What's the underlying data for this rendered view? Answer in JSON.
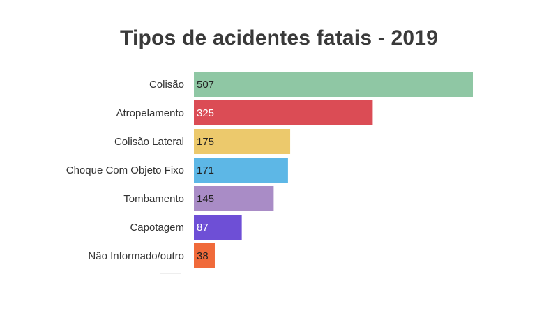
{
  "chart_data": {
    "type": "bar",
    "orientation": "horizontal",
    "title": "Tipos de acidentes fatais  - 2019",
    "xlabel": "",
    "ylabel": "",
    "categories": [
      "Colisão",
      "Atropelamento",
      "Colisão Lateral",
      "Choque Com Objeto Fixo",
      "Tombamento",
      "Capotagem",
      "Não Informado/outro"
    ],
    "values": [
      507,
      325,
      175,
      171,
      145,
      87,
      38
    ],
    "value_labels": [
      "507",
      "325",
      "175",
      "171",
      "145",
      "87",
      "38"
    ],
    "colors": [
      "#8fc7a4",
      "#db4c55",
      "#ecc96c",
      "#5db7e6",
      "#a98cc6",
      "#6e4fd6",
      "#f06a3a"
    ],
    "value_label_colors": [
      "#222222",
      "#ffffff",
      "#222222",
      "#222222",
      "#222222",
      "#ffffff",
      "#222222"
    ],
    "xlim": [
      0,
      507
    ],
    "grid": false,
    "legend": "none"
  }
}
